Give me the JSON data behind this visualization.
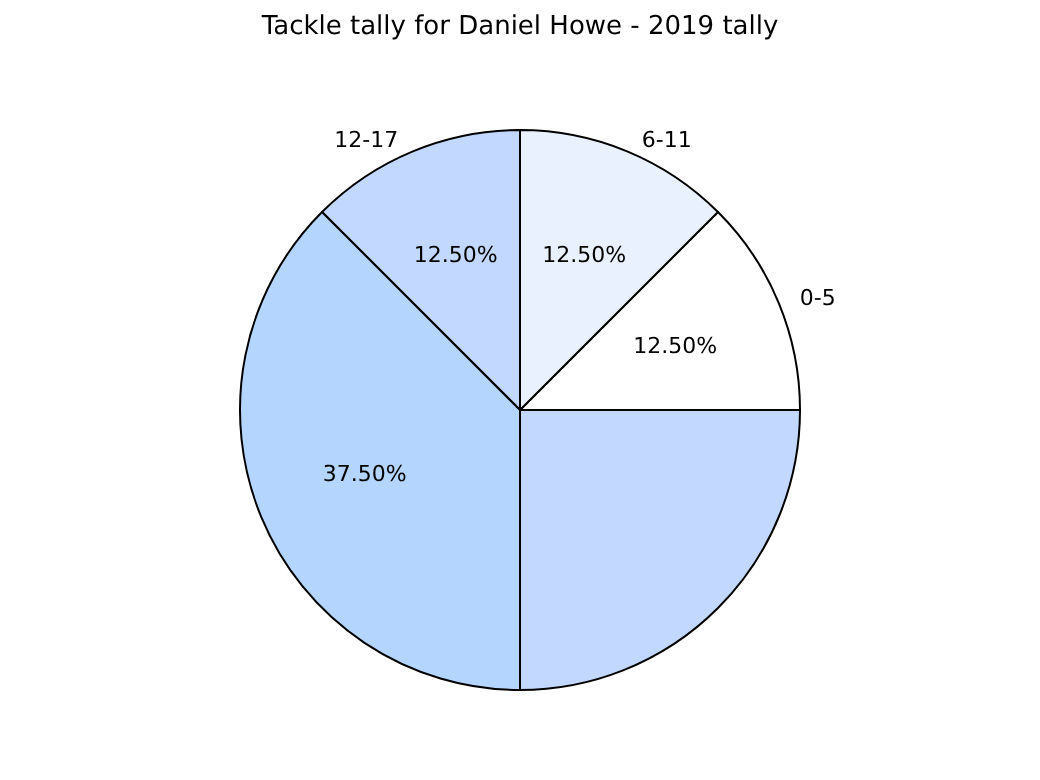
{
  "chart_data": {
    "type": "pie",
    "title": "Tackle tally for Daniel Howe - 2019 tally",
    "categories": [
      "0-5",
      "6-11",
      "12-17",
      null,
      null
    ],
    "values": [
      12.5,
      12.5,
      12.5,
      37.5,
      25
    ],
    "value_labels": [
      "12.50%",
      "12.50%",
      "12.50%",
      "37.50%",
      null
    ],
    "colors": [
      "#ffffff",
      "#eaf1fe",
      "#c2d8fe",
      "#b4d5fe",
      "#c2d8fe"
    ],
    "legend": false
  }
}
